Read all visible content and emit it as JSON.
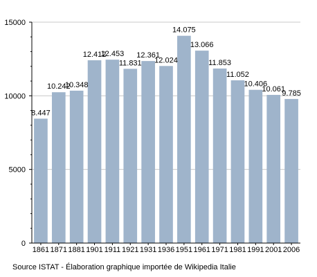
{
  "chart_data": {
    "type": "bar",
    "categories": [
      "1861",
      "1871",
      "1881",
      "1901",
      "1911",
      "1921",
      "1931",
      "1936",
      "1951",
      "1961",
      "1971",
      "1981",
      "1991",
      "2001",
      "2006"
    ],
    "values": [
      8447,
      10242,
      10348,
      12412,
      12453,
      11831,
      12361,
      12024,
      14075,
      13066,
      11853,
      11052,
      10406,
      10061,
      9785
    ],
    "data_labels": [
      "8.447",
      "10.242",
      "10.348",
      "12.412",
      "12.453",
      "11.831",
      "12.361",
      "12.024",
      "14.075",
      "13.066",
      "11.853",
      "11.052",
      "10.406",
      "10.061",
      "9.785"
    ],
    "y_ticks": [
      0,
      5000,
      10000,
      15000
    ],
    "y_tick_labels": [
      "0",
      "5000",
      "10000",
      "15000"
    ],
    "ylim": [
      0,
      15000
    ],
    "grid": true,
    "bar_color": "#9fb4cb",
    "title": "",
    "xlabel": "",
    "ylabel": ""
  },
  "source_note": "Source ISTAT - Élaboration graphique importée de Wikipedia Italie"
}
